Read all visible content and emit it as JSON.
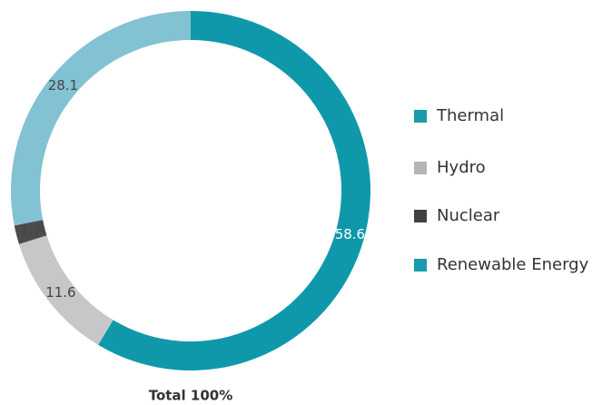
{
  "chart_data": {
    "type": "donut",
    "categories": [
      "Thermal",
      "Hydro",
      "Nuclear",
      "Renewable Energy"
    ],
    "values": [
      58.6,
      11.6,
      1.7,
      28.1
    ],
    "colors": [
      "#0f98aa",
      "#c7c7c9",
      "#4b4b4d",
      "#82c2d2"
    ],
    "legend_colors": [
      "#1a9aab",
      "#b4b4b6",
      "#414143",
      "#1a9aab"
    ],
    "label_colors": [
      "#ffffff",
      "#444444",
      "#444444",
      "#444444"
    ],
    "total_label": "Total 100%"
  }
}
